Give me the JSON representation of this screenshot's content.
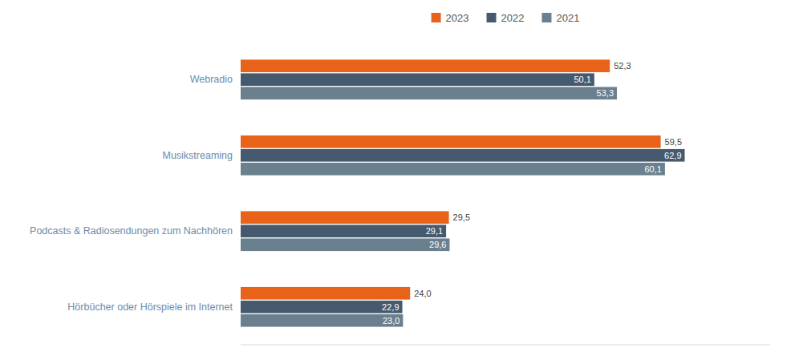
{
  "chart_data": {
    "type": "bar",
    "orientation": "horizontal",
    "categories": [
      "Webradio",
      "Musikstreaming",
      "Podcasts & Radiosendungen zum Nachhören",
      "Hörbücher oder Hörspiele im Internet"
    ],
    "series": [
      {
        "name": "2023",
        "color": "#E8621A",
        "values": [
          52.3,
          59.5,
          29.5,
          24.0
        ],
        "value_labels": [
          "52,3",
          "59,5",
          "29,5",
          "24,0"
        ]
      },
      {
        "name": "2022",
        "color": "#455A6E",
        "values": [
          50.1,
          62.9,
          29.1,
          22.9
        ],
        "value_labels": [
          "50,1",
          "62,9",
          "29,1",
          "22,9"
        ]
      },
      {
        "name": "2021",
        "color": "#6B808F",
        "values": [
          53.3,
          60.1,
          29.6,
          23.0
        ],
        "value_labels": [
          "53,3",
          "60,1",
          "29,6",
          "23,0"
        ]
      }
    ],
    "xlim": [
      0,
      75
    ],
    "grid": false,
    "legend": "top",
    "data_labels": true,
    "tick_labels": "y"
  }
}
